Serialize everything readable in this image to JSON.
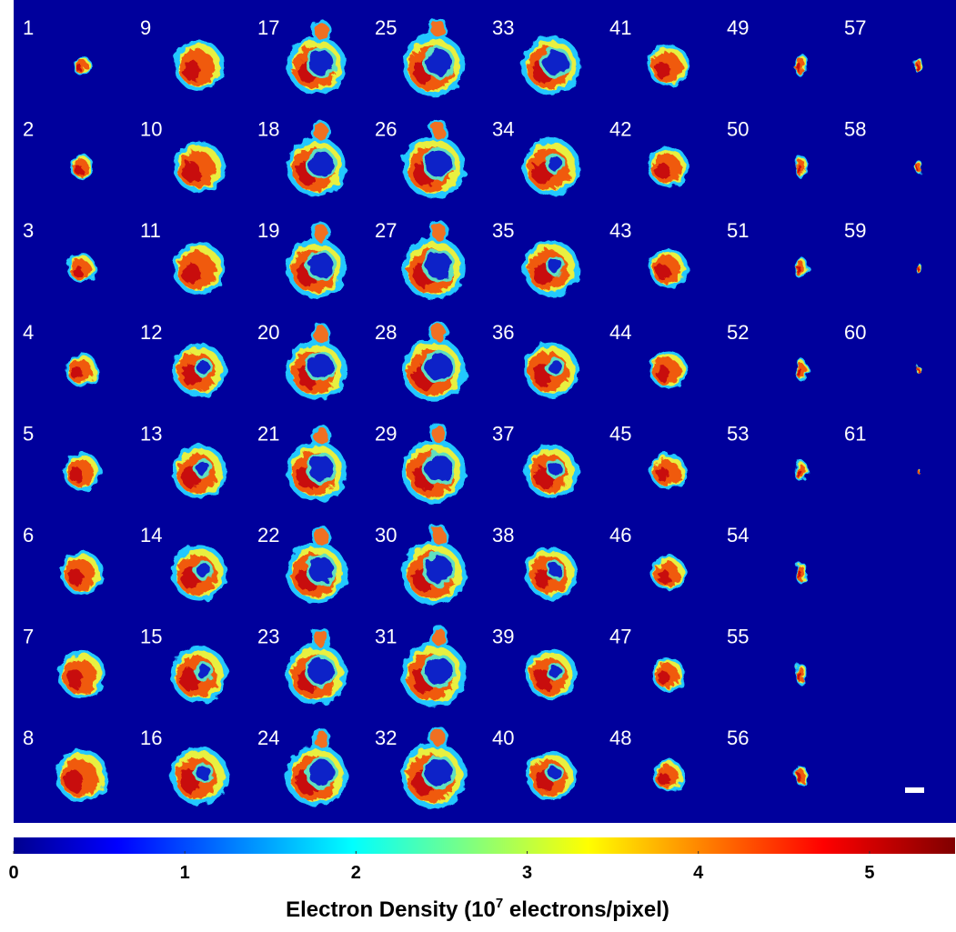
{
  "panel_labels": [
    "1",
    "2",
    "3",
    "4",
    "5",
    "6",
    "7",
    "8",
    "9",
    "10",
    "11",
    "12",
    "13",
    "14",
    "15",
    "16",
    "17",
    "18",
    "19",
    "20",
    "21",
    "22",
    "23",
    "24",
    "25",
    "26",
    "27",
    "28",
    "29",
    "30",
    "31",
    "32",
    "33",
    "34",
    "35",
    "36",
    "37",
    "38",
    "39",
    "40",
    "41",
    "42",
    "43",
    "44",
    "45",
    "46",
    "47",
    "48",
    "49",
    "50",
    "51",
    "52",
    "53",
    "54",
    "55",
    "56",
    "57",
    "58",
    "59",
    "60",
    "61"
  ],
  "colorbar": {
    "lim": [
      0,
      5.5
    ],
    "ticks": [
      0,
      1,
      2,
      3,
      4,
      5
    ],
    "label": {
      "text": "Electron Density  (10",
      "superscript": "7",
      "after": " electrons/pixel)"
    }
  }
}
